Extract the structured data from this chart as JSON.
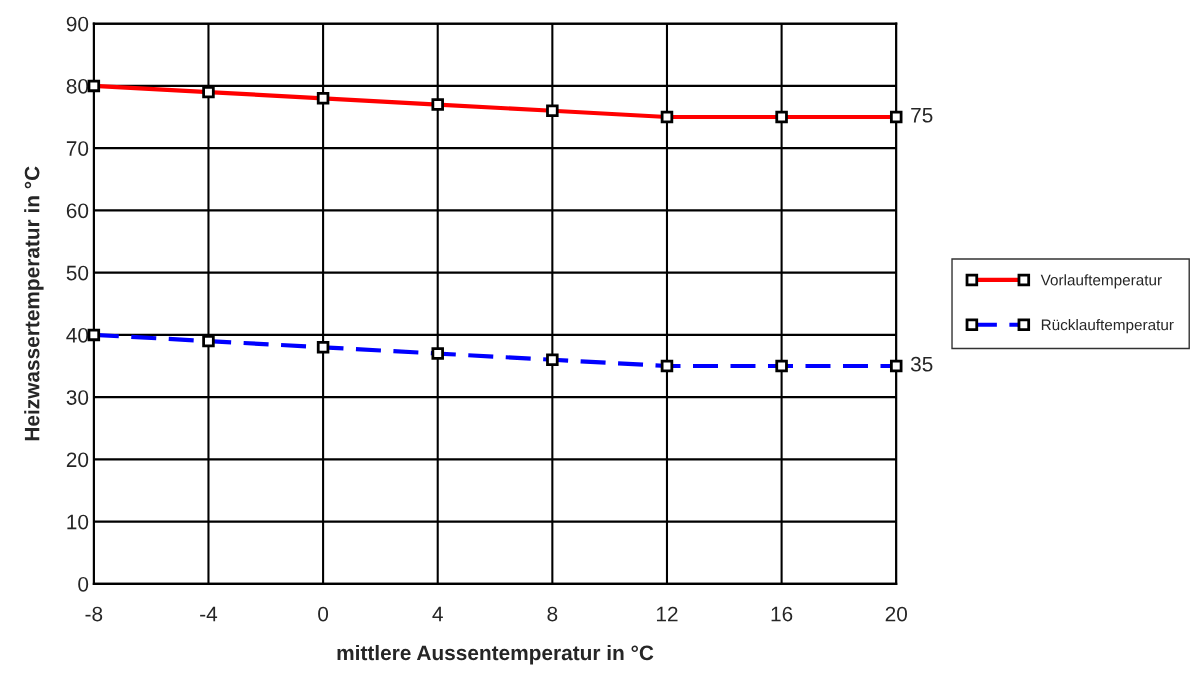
{
  "chart_data": {
    "type": "line",
    "xlabel": "mittlere Aussentemperatur in °C",
    "ylabel": "Heizwassertemperatur in °C",
    "x": [
      -8,
      -4,
      0,
      4,
      8,
      12,
      16,
      20
    ],
    "series": [
      {
        "name": "Vorlauftemperatur",
        "color": "#ff0000",
        "line_style": "solid",
        "values": [
          80,
          79,
          78,
          77,
          76,
          75,
          75,
          75
        ]
      },
      {
        "name": "Rücklauftemperatur",
        "color": "#0000ff",
        "line_style": "dashed",
        "values": [
          40,
          39,
          38,
          37,
          36,
          35,
          35,
          35
        ]
      }
    ],
    "annotations": [
      {
        "text": "75",
        "x": 20,
        "y": 75
      },
      {
        "text": "35",
        "x": 20,
        "y": 35
      }
    ],
    "xlim": [
      -8,
      20
    ],
    "xticks": [
      -8,
      -4,
      0,
      4,
      8,
      12,
      16,
      20
    ],
    "ylim": [
      0,
      90
    ],
    "yticks": [
      0,
      10,
      20,
      30,
      40,
      50,
      60,
      70,
      80,
      90
    ],
    "grid": true,
    "marker": "square",
    "legend": "right"
  }
}
